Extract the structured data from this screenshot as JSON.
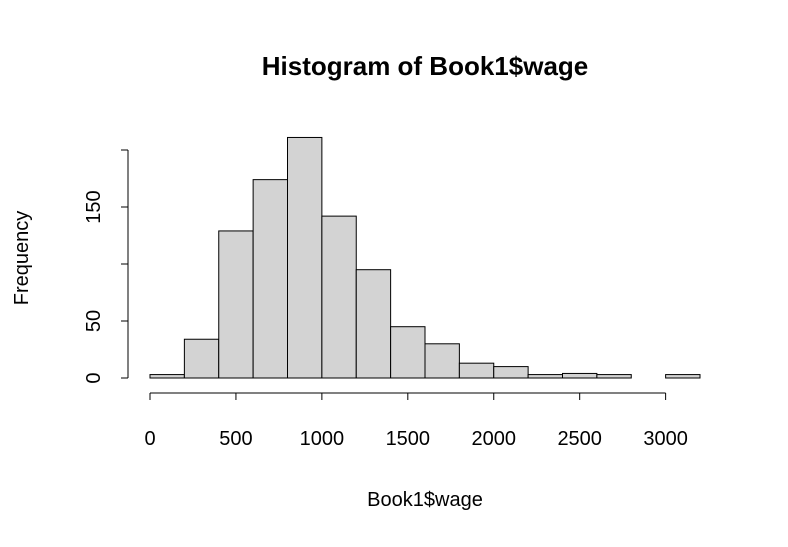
{
  "chart_data": {
    "type": "histogram",
    "title": "Histogram of Book1$wage",
    "xlabel": "Book1$wage",
    "ylabel": "Frequency",
    "bins": [
      0,
      200,
      400,
      600,
      800,
      1000,
      1200,
      1400,
      1600,
      1800,
      2000,
      2200,
      2400,
      2600,
      2800,
      3000,
      3200
    ],
    "values": [
      3,
      34,
      129,
      174,
      211,
      142,
      95,
      45,
      30,
      13,
      10,
      3,
      4,
      3,
      0,
      3
    ],
    "color": "#d3d3d3",
    "xlim": [
      0,
      3200
    ],
    "xticks": [
      0,
      500,
      1000,
      1500,
      2000,
      2500,
      3000
    ],
    "ylim": [
      0,
      215
    ],
    "yticks": [
      0,
      50,
      150
    ],
    "ytick_marks": [
      0,
      50,
      100,
      150,
      200
    ]
  }
}
